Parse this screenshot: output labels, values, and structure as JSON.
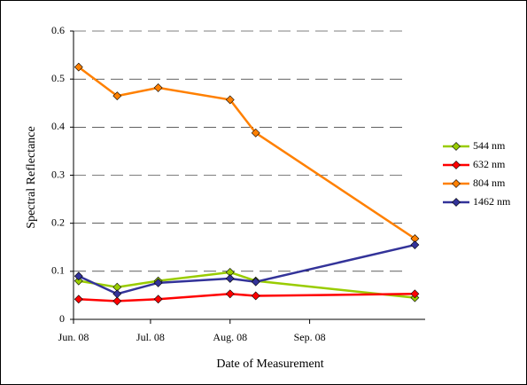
{
  "chart_data": {
    "type": "line",
    "x_label": "Date of Measurement",
    "y_label": "Spectral Reflectance",
    "x": [
      2,
      17,
      33,
      61,
      71,
      133
    ],
    "xlim": [
      0,
      137
    ],
    "xticks": [
      {
        "value": 0,
        "label": "Jun. 08"
      },
      {
        "value": 30,
        "label": "Jul. 08"
      },
      {
        "value": 61,
        "label": "Aug. 08"
      },
      {
        "value": 92,
        "label": "Sep. 08"
      }
    ],
    "ylim": [
      0,
      0.6
    ],
    "yticks": [
      0,
      0.1,
      0.2,
      0.3,
      0.4,
      0.5,
      0.6
    ],
    "grid": true,
    "legend": "right",
    "series": [
      {
        "name": "544 nm",
        "color": "#99cc00",
        "values": [
          0.08,
          0.067,
          0.08,
          0.098,
          0.08,
          0.045
        ]
      },
      {
        "name": "632 nm",
        "color": "#ff0000",
        "values": [
          0.042,
          0.038,
          0.042,
          0.053,
          0.049,
          0.053
        ]
      },
      {
        "name": "804 nm",
        "color": "#ff8000",
        "values": [
          0.525,
          0.465,
          0.482,
          0.457,
          0.388,
          0.168
        ]
      },
      {
        "name": "1462 nm",
        "color": "#333399",
        "values": [
          0.09,
          0.053,
          0.076,
          0.085,
          0.078,
          0.155
        ]
      }
    ]
  }
}
